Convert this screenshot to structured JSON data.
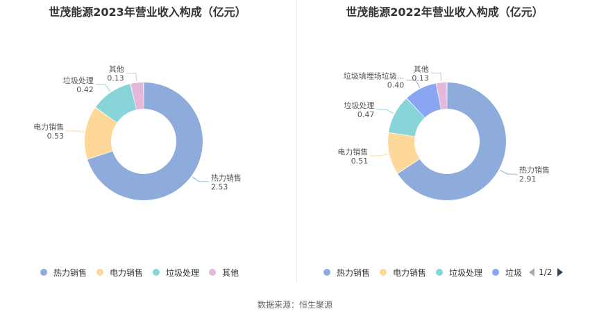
{
  "chart_data": [
    {
      "type": "pie",
      "title": "世茂能源2023年营业收入构成（亿元）",
      "categories": [
        "热力销售",
        "电力销售",
        "垃圾处理",
        "其他"
      ],
      "values": [
        2.53,
        0.53,
        0.42,
        0.13
      ],
      "value_labels": [
        "2.53",
        "0.53",
        "0.42",
        "0.13"
      ],
      "slice_labels": [
        "热力销售",
        "电力销售",
        "垃圾处理",
        "其他"
      ],
      "colors": [
        "#8eacdb",
        "#fdd898",
        "#87d5d9",
        "#e5b7da"
      ],
      "legend": [
        "热力销售",
        "电力销售",
        "垃圾处理",
        "其他"
      ],
      "legend_position": "bottom"
    },
    {
      "type": "pie",
      "title": "世茂能源2022年营业收入构成（亿元）",
      "categories": [
        "热力销售",
        "电力销售",
        "垃圾处理",
        "垃圾填埋场垃圾...",
        "其他"
      ],
      "values": [
        2.91,
        0.51,
        0.47,
        0.4,
        0.13
      ],
      "value_labels": [
        "2.91",
        "0.51",
        "0.47",
        "0.40",
        "0.13"
      ],
      "slice_labels": [
        "热力销售",
        "电力销售",
        "垃圾处理",
        "垃圾填埋场垃圾...",
        "其他"
      ],
      "colors": [
        "#8eacdb",
        "#fdd898",
        "#87d5d9",
        "#8aa5f2",
        "#e5b7da"
      ],
      "legend": [
        "热力销售",
        "电力销售",
        "垃圾处理",
        "垃圾"
      ],
      "legend_position": "bottom",
      "legend_pager": "1/2"
    }
  ],
  "source": "数据来源：恒生聚源"
}
